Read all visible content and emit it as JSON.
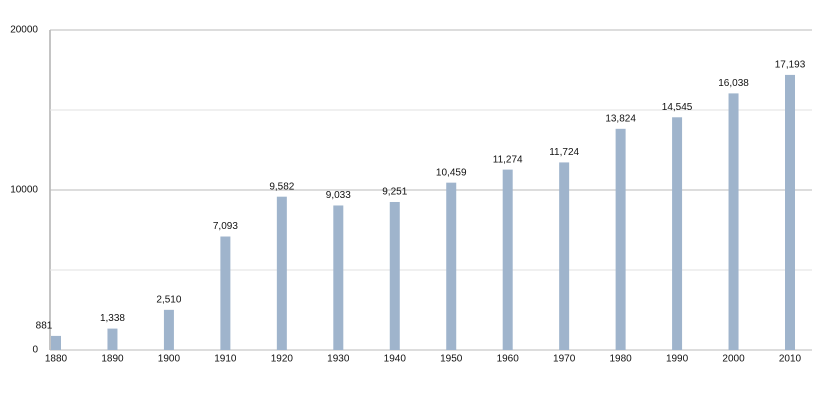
{
  "chart_data": {
    "type": "bar",
    "categories": [
      "1880",
      "1890",
      "1900",
      "1910",
      "1920",
      "1930",
      "1940",
      "1950",
      "1960",
      "1970",
      "1980",
      "1990",
      "2000",
      "2010"
    ],
    "values": [
      881,
      1338,
      2510,
      7093,
      9582,
      9033,
      9251,
      10459,
      11274,
      11724,
      13824,
      14545,
      16038,
      17193
    ],
    "value_labels": [
      "881",
      "1,338",
      "2,510",
      "7,093",
      "9,582",
      "9,033",
      "9,251",
      "10,459",
      "11,274",
      "11,724",
      "13,824",
      "14,545",
      "16,038",
      "17,193"
    ],
    "color": "#9fb4cc",
    "ylim": [
      0,
      20000
    ],
    "yticks": [
      0,
      10000,
      20000
    ],
    "minor_yticks": [
      5000,
      15000
    ],
    "grid": true
  }
}
